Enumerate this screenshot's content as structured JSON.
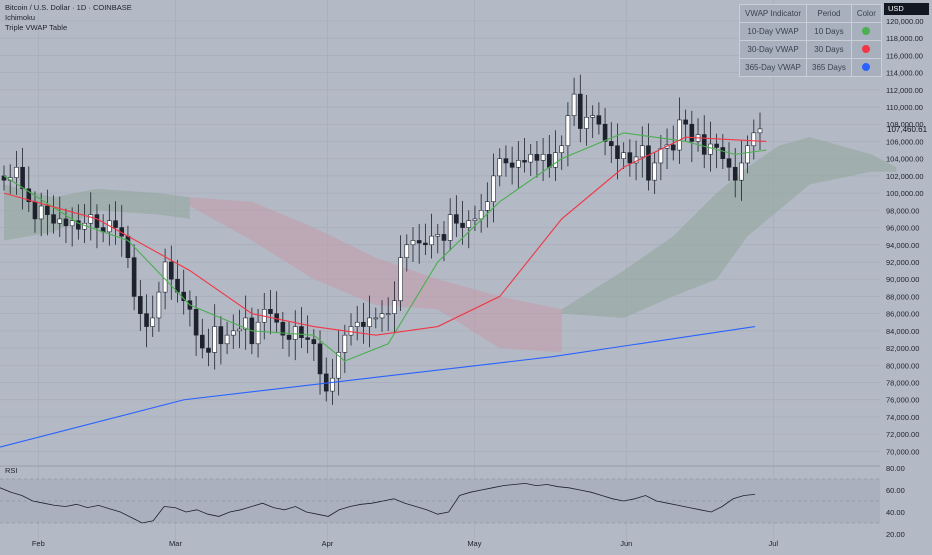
{
  "header": {
    "symbol_title": "Bitcoin / U.S. Dollar · 1D · COINBASE",
    "indicator_1": "Ichimoku",
    "indicator_2": "Triple VWAP Table"
  },
  "vwap_table": {
    "headers": [
      "VWAP Indicator",
      "Period",
      "Color"
    ],
    "rows": [
      {
        "name": "10-Day VWAP",
        "period": "10 Days",
        "color": "#4caf50"
      },
      {
        "name": "30-Day VWAP",
        "period": "30 Days",
        "color": "#f23645"
      },
      {
        "name": "365-Day VWAP",
        "period": "365 Days",
        "color": "#2962ff"
      }
    ]
  },
  "currency_tag": "USD",
  "last_price": "107,460.61",
  "price_axis_labels": [
    "120,000.00",
    "118,000.00",
    "116,000.00",
    "114,000.00",
    "112,000.00",
    "110,000.00",
    "108,000.00",
    "106,000.00",
    "104,000.00",
    "102,000.00",
    "100,000.00",
    "98,000.00",
    "96,000.00",
    "94,000.00",
    "92,000.00",
    "90,000.00",
    "88,000.00",
    "86,000.00",
    "84,000.00",
    "82,000.00",
    "80,000.00",
    "78,000.00",
    "76,000.00",
    "74,000.00",
    "72,000.00",
    "70,000.00"
  ],
  "rsi_label": "RSI",
  "rsi_axis_labels": [
    "80.00",
    "60.00",
    "40.00",
    "20.00"
  ],
  "time_axis_labels": [
    "Feb",
    "Mar",
    "Apr",
    "May",
    "Jun",
    "Jul"
  ],
  "colors": {
    "background": "#b3b9c5",
    "candle": "#1e222d",
    "vwap10": "#4caf50",
    "vwap30": "#f23645",
    "vwap365": "#2962ff",
    "cloud_bull": "#8fa89a",
    "cloud_bear": "#c49aa7",
    "rsi_line": "#1e222d"
  },
  "chart_data": {
    "type": "candlestick",
    "instrument": "Bitcoin / U.S. Dollar · 1D · COINBASE",
    "y_range": [
      69000,
      121500
    ],
    "x": [
      "Feb",
      "Mar",
      "Apr",
      "May",
      "Jun",
      "Jul"
    ],
    "candles_close": [
      101500,
      101800,
      103000,
      100500,
      99000,
      97000,
      98500,
      97500,
      96500,
      97000,
      96200,
      96800,
      95800,
      96500,
      97500,
      96000,
      95500,
      96800,
      96000,
      95000,
      92500,
      88000,
      86000,
      84500,
      85500,
      88500,
      92000,
      90000,
      88500,
      87500,
      86500,
      83500,
      82000,
      81500,
      84500,
      82500,
      83500,
      84000,
      84200,
      85500,
      82500,
      85000,
      86500,
      86000,
      85000,
      83500,
      83000,
      84500,
      83200,
      83000,
      82500,
      79000,
      77000,
      78500,
      81500,
      83500,
      84500,
      85000,
      84500,
      85500,
      85500,
      86000,
      86000,
      87500,
      92500,
      94000,
      94500,
      94200,
      94000,
      95000,
      95200,
      94500,
      97500,
      96500,
      96000,
      96800,
      97000,
      98000,
      99000,
      102000,
      104000,
      103500,
      103000,
      103800,
      103600,
      104500,
      103800,
      104500,
      103000,
      104700,
      105500,
      109000,
      111500,
      107500,
      108800,
      109000,
      108000,
      106000,
      105500,
      104000,
      104700,
      103500,
      104200,
      105500,
      101500,
      103500,
      105200,
      105600,
      105000,
      108500,
      108000,
      106000,
      106800,
      104500,
      105700,
      105300,
      104000,
      103000,
      101500,
      103500,
      105500,
      107000,
      107460
    ],
    "series": [
      {
        "name": "10-Day VWAP",
        "color": "#4caf50"
      },
      {
        "name": "30-Day VWAP",
        "color": "#f23645"
      },
      {
        "name": "365-Day VWAP",
        "color": "#2962ff"
      },
      {
        "name": "Ichimoku"
      },
      {
        "name": "RSI",
        "range": [
          20,
          80
        ]
      }
    ],
    "vwap10_approx": [
      [
        0,
        102000
      ],
      [
        12,
        96500
      ],
      [
        20,
        94500
      ],
      [
        30,
        87000
      ],
      [
        40,
        84000
      ],
      [
        50,
        83500
      ],
      [
        55,
        80500
      ],
      [
        62,
        82500
      ],
      [
        70,
        92000
      ],
      [
        80,
        99000
      ],
      [
        90,
        104000
      ],
      [
        100,
        107000
      ],
      [
        110,
        106000
      ],
      [
        118,
        104500
      ],
      [
        123,
        105000
      ]
    ],
    "vwap30_approx": [
      [
        0,
        100000
      ],
      [
        15,
        97000
      ],
      [
        30,
        91000
      ],
      [
        40,
        86000
      ],
      [
        50,
        84500
      ],
      [
        60,
        83500
      ],
      [
        70,
        84500
      ],
      [
        80,
        88000
      ],
      [
        90,
        97000
      ],
      [
        100,
        103000
      ],
      [
        110,
        106500
      ],
      [
        123,
        106000
      ]
    ],
    "vwap365_approx": [
      [
        0,
        70500
      ],
      [
        30,
        76000
      ],
      [
        60,
        78500
      ],
      [
        90,
        81000
      ],
      [
        123,
        84500
      ]
    ],
    "rsi_approx": [
      62,
      58,
      55,
      50,
      48,
      46,
      45,
      47,
      44,
      46,
      43,
      40,
      35,
      30,
      32,
      45,
      44,
      40,
      42,
      38,
      36,
      40,
      42,
      45,
      48,
      44,
      42,
      45,
      40,
      38,
      36,
      42,
      45,
      47,
      48,
      50,
      52,
      48,
      45,
      42,
      38,
      40,
      55,
      58,
      60,
      62,
      64,
      65,
      66,
      64,
      65,
      63,
      62,
      60,
      58,
      55,
      52,
      50,
      52,
      55,
      50,
      48,
      46,
      44,
      42,
      40,
      45,
      52,
      55,
      56
    ]
  }
}
